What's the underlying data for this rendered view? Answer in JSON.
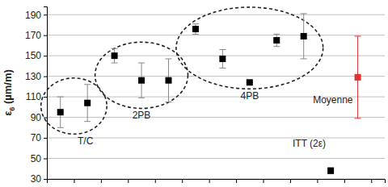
{
  "chart_data": {
    "type": "scatter",
    "y_label": "ε6 (µm/m)",
    "xlim": [
      0.5,
      13
    ],
    "xticks": [
      0.5,
      1.5,
      2.5,
      3.5,
      4.5,
      5.5,
      6.5,
      7.5,
      8.5,
      9.5,
      10.5,
      11.5,
      12.5
    ],
    "ylim": [
      30,
      198
    ],
    "yticks": [
      30,
      50,
      70,
      90,
      110,
      130,
      150,
      170,
      190
    ],
    "grid": true,
    "tick_labels": "y",
    "marker": "square",
    "series": [
      {
        "name": "T/C",
        "color": "#000000",
        "x": [
          1,
          2
        ],
        "values": [
          95,
          104
        ],
        "errors": [
          15,
          18
        ]
      },
      {
        "name": "2PB",
        "color": "#000000",
        "x": [
          3,
          4,
          5
        ],
        "values": [
          150,
          126,
          126
        ],
        "errors": [
          7,
          17,
          21
        ]
      },
      {
        "name": "4PB",
        "color": "#000000",
        "x": [
          6,
          7,
          8,
          9,
          10
        ],
        "values": [
          176,
          147,
          124,
          165,
          169
        ],
        "errors": [
          5,
          9,
          0,
          6,
          22
        ]
      },
      {
        "name": "ITT (2ε)",
        "color": "#000000",
        "x": [
          11
        ],
        "values": [
          38
        ],
        "errors": [
          3
        ]
      },
      {
        "name": "Moyenne",
        "color": "#e03030",
        "x": [
          12
        ],
        "values": [
          129
        ],
        "errors": [
          40
        ]
      }
    ]
  }
}
